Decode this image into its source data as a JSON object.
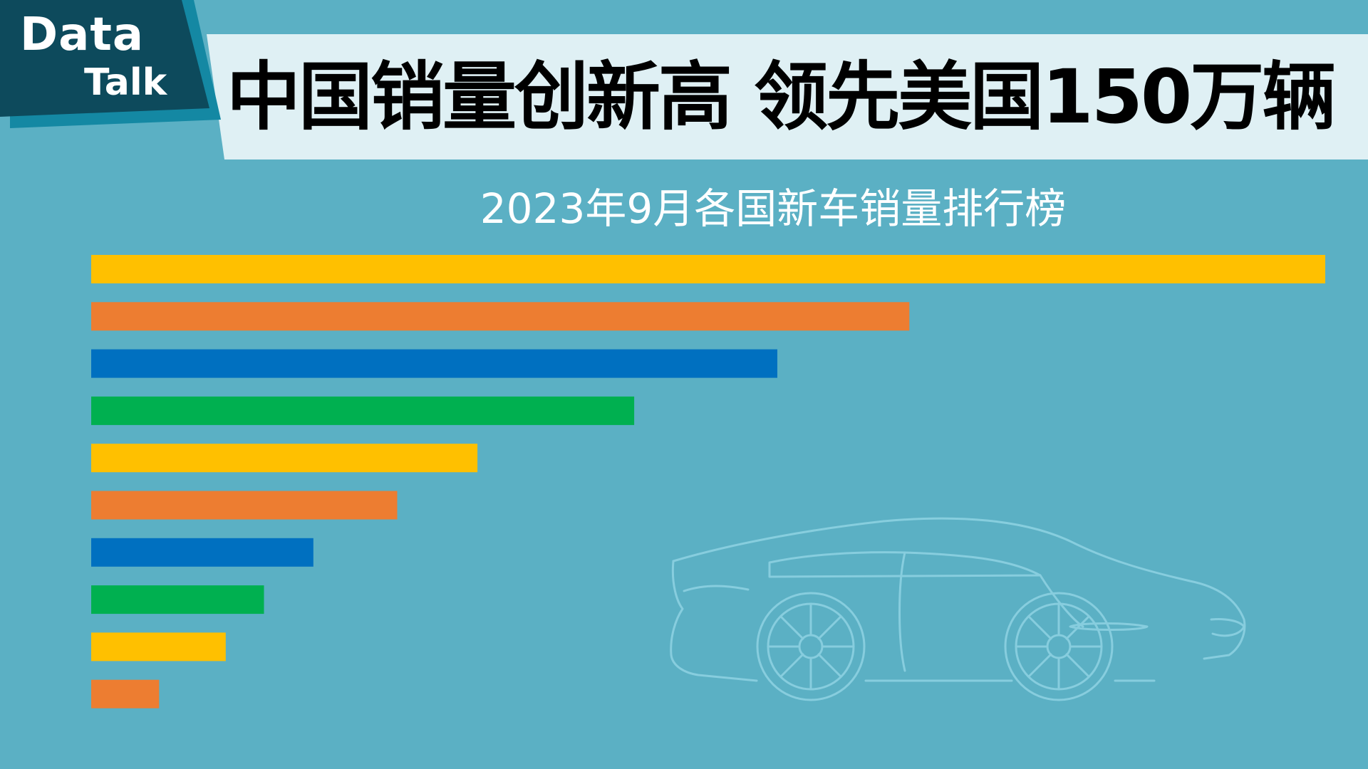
{
  "header": {
    "logo_line1": "Data",
    "logo_line2": "Talk",
    "title": "中国销量创新高 领先美国150万辆",
    "subtitle": "2023年9月各国新车销量排行榜"
  },
  "colors": {
    "background": "#5bb0c4",
    "banner": "#dff0f4",
    "logo_dark": "#0d4a5c",
    "logo_accent": "#1488a3",
    "title_text": "#000000",
    "subtitle_text": "#ffffff",
    "car_outline": "#8fd3e3"
  },
  "decor": {
    "car_icon": "sports-car-outline-icon"
  },
  "chart_data": {
    "type": "bar",
    "orientation": "horizontal",
    "title": "2023年9月各国新车销量排行榜",
    "categories": [
      "",
      "",
      "",
      "",
      "",
      "",
      "",
      "",
      "",
      ""
    ],
    "values": [
      100,
      66.3,
      55.6,
      44.0,
      31.3,
      24.8,
      18.0,
      14.0,
      10.9,
      5.5
    ],
    "colors": [
      "#ffc000",
      "#ed7d31",
      "#0070c0",
      "#00b050",
      "#ffc000",
      "#ed7d31",
      "#0070c0",
      "#00b050",
      "#ffc000",
      "#ed7d31"
    ],
    "xlabel": "",
    "ylabel": "",
    "xlim": [
      0,
      100
    ],
    "grid": false,
    "legend": "none"
  }
}
